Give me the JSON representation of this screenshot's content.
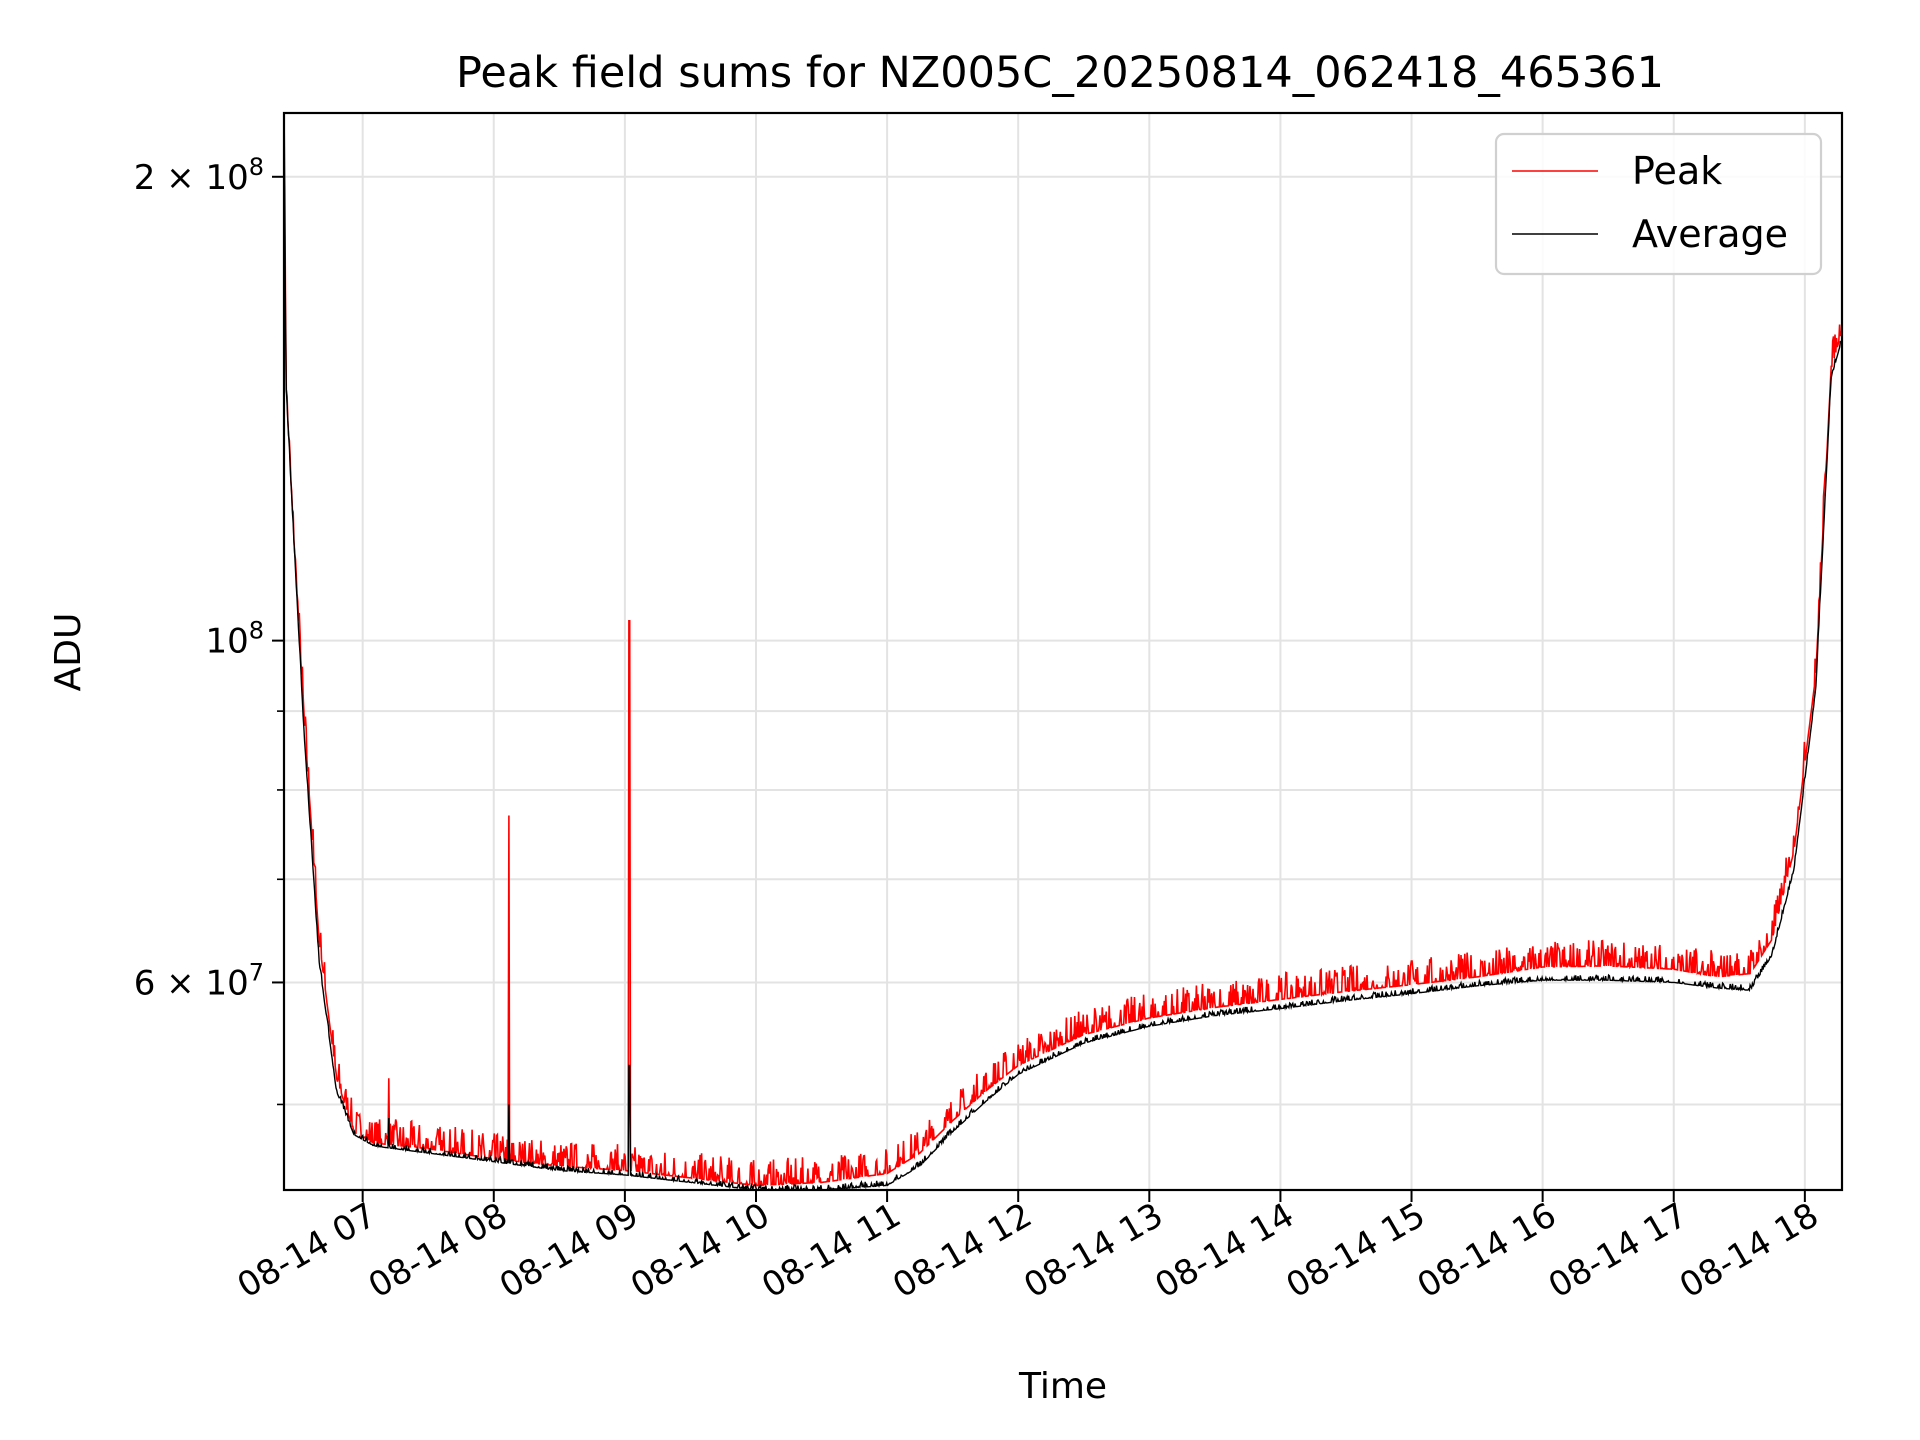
{
  "chart_data": {
    "type": "line",
    "title": "Peak field sums for NZ005C_20250814_062418_465361",
    "xlabel": "Time",
    "ylabel": "ADU",
    "x_scale": "time",
    "y_scale": "log",
    "xlim": [
      "2025-08-14 06:24",
      "2025-08-14 18:17"
    ],
    "ylim": [
      44000000,
      220000000
    ],
    "x_ticks": [
      {
        "t": "2025-08-14 07:00",
        "label": "08-14 07"
      },
      {
        "t": "2025-08-14 08:00",
        "label": "08-14 08"
      },
      {
        "t": "2025-08-14 09:00",
        "label": "08-14 09"
      },
      {
        "t": "2025-08-14 10:00",
        "label": "08-14 10"
      },
      {
        "t": "2025-08-14 11:00",
        "label": "08-14 11"
      },
      {
        "t": "2025-08-14 12:00",
        "label": "08-14 12"
      },
      {
        "t": "2025-08-14 13:00",
        "label": "08-14 13"
      },
      {
        "t": "2025-08-14 14:00",
        "label": "08-14 14"
      },
      {
        "t": "2025-08-14 15:00",
        "label": "08-14 15"
      },
      {
        "t": "2025-08-14 16:00",
        "label": "08-14 16"
      },
      {
        "t": "2025-08-14 17:00",
        "label": "08-14 17"
      },
      {
        "t": "2025-08-14 18:00",
        "label": "08-14 18"
      }
    ],
    "y_major_ticks": [
      {
        "value": 60000000,
        "mantissa": "6",
        "base": "10",
        "exponent": "7"
      },
      {
        "value": 100000000,
        "mantissa": "",
        "base": "10",
        "exponent": "8"
      },
      {
        "value": 200000000,
        "mantissa": "2",
        "base": "10",
        "exponent": "8"
      }
    ],
    "y_minor_ticks": [
      50000000,
      70000000,
      80000000,
      90000000
    ],
    "grid": true,
    "legend_position": "upper-right",
    "series": [
      {
        "name": "Peak",
        "color": "#ff0000",
        "noise": 0.02,
        "x": [
          "2025-08-14 06:24",
          "2025-08-14 06:25",
          "2025-08-14 06:28",
          "2025-08-14 06:33",
          "2025-08-14 06:40",
          "2025-08-14 06:48",
          "2025-08-14 06:56",
          "2025-08-14 07:05",
          "2025-08-14 07:30",
          "2025-08-14 08:00",
          "2025-08-14 08:30",
          "2025-08-14 09:00",
          "2025-08-14 09:30",
          "2025-08-14 10:00",
          "2025-08-14 10:30",
          "2025-08-14 11:00",
          "2025-08-14 11:15",
          "2025-08-14 11:30",
          "2025-08-14 11:45",
          "2025-08-14 12:00",
          "2025-08-14 12:30",
          "2025-08-14 13:00",
          "2025-08-14 13:30",
          "2025-08-14 14:00",
          "2025-08-14 14:30",
          "2025-08-14 15:00",
          "2025-08-14 15:30",
          "2025-08-14 16:00",
          "2025-08-14 16:30",
          "2025-08-14 17:00",
          "2025-08-14 17:20",
          "2025-08-14 17:35",
          "2025-08-14 17:45",
          "2025-08-14 17:55",
          "2025-08-14 18:05",
          "2025-08-14 18:12",
          "2025-08-14 18:17"
        ],
        "y": [
          220000000,
          146000000,
          120000000,
          90000000,
          64000000,
          52000000,
          48000000,
          47200000,
          46800000,
          46100000,
          45600000,
          45300000,
          44800000,
          44300000,
          44500000,
          45100000,
          46500000,
          48800000,
          51000000,
          53000000,
          55500000,
          56900000,
          57800000,
          58500000,
          59200000,
          59800000,
          60500000,
          61400000,
          61500000,
          61200000,
          60500000,
          60800000,
          64000000,
          73000000,
          95000000,
          150000000,
          159000000
        ],
        "spikes": [
          {
            "t": "2025-08-14 07:12",
            "y": 52000000
          },
          {
            "t": "2025-08-14 08:07",
            "y": 77000000
          },
          {
            "t": "2025-08-14 09:02",
            "y": 103000000
          }
        ]
      },
      {
        "name": "Average",
        "color": "#000000",
        "noise": 0.004,
        "x": [
          "2025-08-14 06:24",
          "2025-08-14 06:25",
          "2025-08-14 06:28",
          "2025-08-14 06:33",
          "2025-08-14 06:40",
          "2025-08-14 06:48",
          "2025-08-14 06:56",
          "2025-08-14 07:05",
          "2025-08-14 07:30",
          "2025-08-14 08:00",
          "2025-08-14 08:30",
          "2025-08-14 09:00",
          "2025-08-14 09:30",
          "2025-08-14 10:00",
          "2025-08-14 10:30",
          "2025-08-14 11:00",
          "2025-08-14 11:15",
          "2025-08-14 11:30",
          "2025-08-14 11:45",
          "2025-08-14 12:00",
          "2025-08-14 12:30",
          "2025-08-14 13:00",
          "2025-08-14 13:30",
          "2025-08-14 14:00",
          "2025-08-14 14:30",
          "2025-08-14 15:00",
          "2025-08-14 15:30",
          "2025-08-14 16:00",
          "2025-08-14 16:30",
          "2025-08-14 17:00",
          "2025-08-14 17:20",
          "2025-08-14 17:35",
          "2025-08-14 17:45",
          "2025-08-14 17:55",
          "2025-08-14 18:05",
          "2025-08-14 18:12",
          "2025-08-14 18:17"
        ],
        "y": [
          210000000,
          146000000,
          120000000,
          88000000,
          62000000,
          51000000,
          47800000,
          47000000,
          46500000,
          45900000,
          45300000,
          45000000,
          44500000,
          44000000,
          44000000,
          44300000,
          45600000,
          48000000,
          50200000,
          52300000,
          54800000,
          56200000,
          57100000,
          57700000,
          58400000,
          59000000,
          59700000,
          60200000,
          60200000,
          60000000,
          59500000,
          59300000,
          62500000,
          71000000,
          93000000,
          148000000,
          157000000
        ],
        "spikes": [
          {
            "t": "2025-08-14 07:12",
            "y": 49000000
          },
          {
            "t": "2025-08-14 08:07",
            "y": 50000000
          },
          {
            "t": "2025-08-14 09:02",
            "y": 53000000
          }
        ]
      }
    ]
  }
}
